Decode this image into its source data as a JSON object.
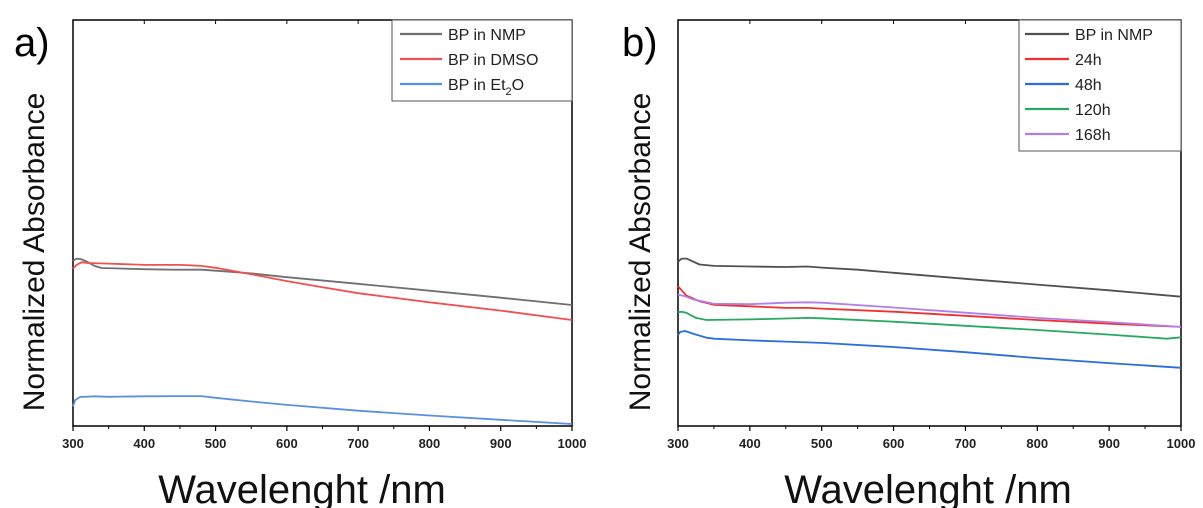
{
  "chart_data": [
    {
      "type": "line",
      "panel_label": "a)",
      "xlabel": "Wavelenght /nm",
      "ylabel": "Normalized Absorbance",
      "xlim": [
        300,
        1000
      ],
      "xticks": [
        300,
        400,
        500,
        600,
        700,
        800,
        900,
        1000
      ],
      "ylim": [
        0,
        1
      ],
      "yticks_shown": false,
      "grid": false,
      "legend_position": "top-right",
      "series": [
        {
          "name": "BP in NMP",
          "legend_main": "BP in NMP",
          "legend_sub": "",
          "legend_tail": "",
          "color": "#707070",
          "points": [
            [
              300,
              0.785
            ],
            [
              305,
              0.795
            ],
            [
              312,
              0.792
            ],
            [
              320,
              0.78
            ],
            [
              330,
              0.76
            ],
            [
              340,
              0.75
            ],
            [
              360,
              0.748
            ],
            [
              400,
              0.744
            ],
            [
              440,
              0.742
            ],
            [
              480,
              0.742
            ],
            [
              500,
              0.737
            ],
            [
              550,
              0.724
            ],
            [
              600,
              0.706
            ],
            [
              700,
              0.674
            ],
            [
              800,
              0.641
            ],
            [
              900,
              0.607
            ],
            [
              1000,
              0.572
            ]
          ]
        },
        {
          "name": "BP in DMSO",
          "legend_main": "BP in DMSO",
          "legend_sub": "",
          "legend_tail": "",
          "color": "#f05050",
          "points": [
            [
              300,
              0.747
            ],
            [
              305,
              0.765
            ],
            [
              312,
              0.778
            ],
            [
              320,
              0.774
            ],
            [
              350,
              0.771
            ],
            [
              400,
              0.765
            ],
            [
              450,
              0.765
            ],
            [
              480,
              0.76
            ],
            [
              500,
              0.751
            ],
            [
              550,
              0.72
            ],
            [
              600,
              0.687
            ],
            [
              650,
              0.657
            ],
            [
              700,
              0.629
            ],
            [
              800,
              0.585
            ],
            [
              900,
              0.545
            ],
            [
              1000,
              0.5
            ]
          ]
        },
        {
          "name": "BP in Et2O",
          "legend_main": "BP in Et",
          "legend_sub": "2",
          "legend_tail": "O",
          "color": "#5b90e0",
          "points": [
            [
              300,
              0.085
            ],
            [
              303,
              0.115
            ],
            [
              310,
              0.13
            ],
            [
              330,
              0.133
            ],
            [
              350,
              0.131
            ],
            [
              400,
              0.133
            ],
            [
              450,
              0.134
            ],
            [
              480,
              0.134
            ],
            [
              500,
              0.126
            ],
            [
              550,
              0.108
            ],
            [
              600,
              0.092
            ],
            [
              700,
              0.064
            ],
            [
              800,
              0.041
            ],
            [
              900,
              0.02
            ],
            [
              1000,
              0.0
            ]
          ]
        }
      ]
    },
    {
      "type": "line",
      "panel_label": "b)",
      "xlabel": "Wavelenght /nm",
      "ylabel": "Normalized Absorbance",
      "xlim": [
        300,
        1000
      ],
      "xticks": [
        300,
        400,
        500,
        600,
        700,
        800,
        900,
        1000
      ],
      "ylim": [
        0,
        1
      ],
      "yticks_shown": false,
      "grid": false,
      "legend_position": "top-right",
      "series": [
        {
          "name": "BP in NMP",
          "legend_main": "BP in NMP",
          "legend_sub": "",
          "legend_tail": "",
          "color": "#505050",
          "points": [
            [
              300,
              0.78
            ],
            [
              305,
              0.795
            ],
            [
              312,
              0.795
            ],
            [
              320,
              0.782
            ],
            [
              330,
              0.767
            ],
            [
              350,
              0.76
            ],
            [
              400,
              0.757
            ],
            [
              450,
              0.755
            ],
            [
              480,
              0.757
            ],
            [
              500,
              0.752
            ],
            [
              550,
              0.742
            ],
            [
              600,
              0.727
            ],
            [
              700,
              0.698
            ],
            [
              800,
              0.67
            ],
            [
              900,
              0.643
            ],
            [
              1000,
              0.612
            ]
          ]
        },
        {
          "name": "24h",
          "legend_main": "24h",
          "legend_sub": "",
          "legend_tail": "",
          "color": "#f03030",
          "points": [
            [
              300,
              0.663
            ],
            [
              305,
              0.643
            ],
            [
              312,
              0.617
            ],
            [
              330,
              0.59
            ],
            [
              350,
              0.573
            ],
            [
              400,
              0.566
            ],
            [
              450,
              0.558
            ],
            [
              480,
              0.558
            ],
            [
              500,
              0.555
            ],
            [
              600,
              0.54
            ],
            [
              700,
              0.52
            ],
            [
              800,
              0.5
            ],
            [
              900,
              0.482
            ],
            [
              1000,
              0.467
            ]
          ]
        },
        {
          "name": "48h",
          "legend_main": "48h",
          "legend_sub": "",
          "legend_tail": "",
          "color": "#2a6ed8",
          "points": [
            [
              300,
              0.427
            ],
            [
              303,
              0.443
            ],
            [
              310,
              0.447
            ],
            [
              320,
              0.435
            ],
            [
              340,
              0.415
            ],
            [
              350,
              0.41
            ],
            [
              400,
              0.402
            ],
            [
              450,
              0.396
            ],
            [
              500,
              0.39
            ],
            [
              600,
              0.37
            ],
            [
              700,
              0.345
            ],
            [
              800,
              0.317
            ],
            [
              900,
              0.293
            ],
            [
              1000,
              0.27
            ]
          ]
        },
        {
          "name": "120h",
          "legend_main": "120h",
          "legend_sub": "",
          "legend_tail": "",
          "color": "#28a860",
          "points": [
            [
              300,
              0.537
            ],
            [
              305,
              0.54
            ],
            [
              312,
              0.534
            ],
            [
              325,
              0.51
            ],
            [
              340,
              0.5
            ],
            [
              400,
              0.503
            ],
            [
              450,
              0.507
            ],
            [
              480,
              0.51
            ],
            [
              500,
              0.508
            ],
            [
              600,
              0.492
            ],
            [
              700,
              0.472
            ],
            [
              800,
              0.452
            ],
            [
              900,
              0.43
            ],
            [
              980,
              0.41
            ],
            [
              1000,
              0.417
            ]
          ]
        },
        {
          "name": "168h",
          "legend_main": "168h",
          "legend_sub": "",
          "legend_tail": "",
          "color": "#b080e8",
          "points": [
            [
              300,
              0.622
            ],
            [
              310,
              0.614
            ],
            [
              320,
              0.6
            ],
            [
              340,
              0.585
            ],
            [
              350,
              0.578
            ],
            [
              400,
              0.576
            ],
            [
              450,
              0.583
            ],
            [
              480,
              0.585
            ],
            [
              500,
              0.583
            ],
            [
              600,
              0.56
            ],
            [
              700,
              0.535
            ],
            [
              800,
              0.51
            ],
            [
              900,
              0.49
            ],
            [
              1000,
              0.467
            ]
          ]
        }
      ]
    }
  ]
}
